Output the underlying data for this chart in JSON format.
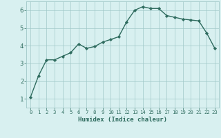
{
  "x": [
    0,
    1,
    2,
    3,
    4,
    5,
    6,
    7,
    8,
    9,
    10,
    11,
    12,
    13,
    14,
    15,
    16,
    17,
    18,
    19,
    20,
    21,
    22,
    23
  ],
  "y": [
    1.1,
    2.3,
    3.2,
    3.2,
    3.4,
    3.6,
    4.1,
    3.85,
    3.95,
    4.2,
    4.35,
    4.5,
    5.35,
    6.0,
    6.2,
    6.1,
    6.1,
    5.7,
    5.6,
    5.5,
    5.45,
    5.4,
    4.7,
    3.85
  ],
  "line_color": "#2e6b5e",
  "marker": "D",
  "marker_size": 2.2,
  "bg_color": "#d8f0f0",
  "grid_color": "#a0c8c8",
  "xlabel": "Humidex (Indice chaleur)",
  "xlim": [
    -0.5,
    23.5
  ],
  "ylim": [
    0.5,
    6.5
  ],
  "yticks": [
    1,
    2,
    3,
    4,
    5,
    6
  ],
  "xticks": [
    0,
    1,
    2,
    3,
    4,
    5,
    6,
    7,
    8,
    9,
    10,
    11,
    12,
    13,
    14,
    15,
    16,
    17,
    18,
    19,
    20,
    21,
    22,
    23
  ],
  "xtick_labels": [
    "0",
    "1",
    "2",
    "3",
    "4",
    "5",
    "6",
    "7",
    "8",
    "9",
    "10",
    "11",
    "12",
    "13",
    "14",
    "15",
    "16",
    "17",
    "18",
    "19",
    "20",
    "21",
    "22",
    "23"
  ],
  "font_color": "#2e6b5e",
  "linewidth": 1.0
}
